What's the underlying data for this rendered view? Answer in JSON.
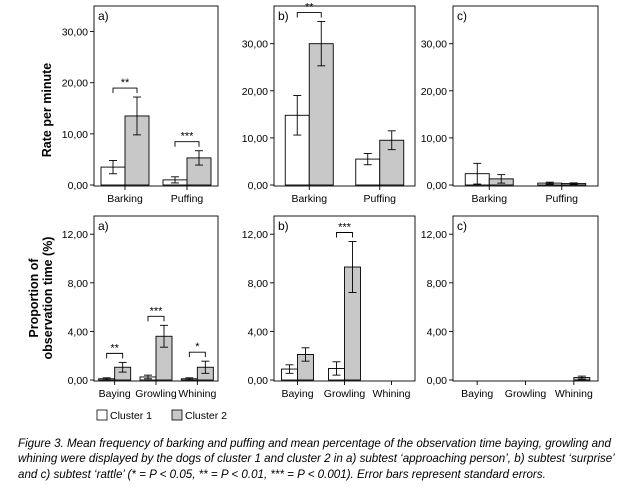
{
  "figure": {
    "row_labels": {
      "top": "Rate per minute",
      "bottom_line1": "Proportion of",
      "bottom_line2": "observation time (%)"
    },
    "legend": [
      {
        "name": "Cluster 1",
        "color": "#ffffff"
      },
      {
        "name": "Cluster 2",
        "color": "#c8c8c8"
      }
    ],
    "caption": "Figure 3. Mean frequency of barking and puffing and mean percentage of the observation time baying, growling and whining were displayed by the dogs of cluster 1 and cluster 2 in a) subtest ‘approaching person’, b) subtest ‘surprise’ and c) subtest ‘rattle’ (* = P < 0.05, ** = P < 0.01, *** = P < 0.001). Error bars represent standard errors."
  },
  "chart_data": [
    {
      "type": "bar",
      "panel": "a)",
      "row": "top",
      "categories": [
        "Barking",
        "Puffing"
      ],
      "ylim": [
        0,
        35
      ],
      "yticks": [
        "0,00",
        "10,00",
        "20,00",
        "30,00"
      ],
      "ytick_values": [
        0,
        10,
        20,
        30
      ],
      "ylabel": "Rate per minute",
      "series": [
        {
          "name": "Cluster 1",
          "values": [
            3.5,
            1.0
          ],
          "err": [
            1.3,
            0.6
          ]
        },
        {
          "name": "Cluster 2",
          "values": [
            13.5,
            5.3
          ],
          "err": [
            3.7,
            1.4
          ]
        }
      ],
      "significance": [
        "**",
        "***"
      ]
    },
    {
      "type": "bar",
      "panel": "b)",
      "row": "top",
      "categories": [
        "Barking",
        "Puffing"
      ],
      "ylim": [
        0,
        38
      ],
      "yticks": [
        "0,00",
        "10,00",
        "20,00",
        "30,00"
      ],
      "ytick_values": [
        0,
        10,
        20,
        30
      ],
      "series": [
        {
          "name": "Cluster 1",
          "values": [
            14.8,
            5.5
          ],
          "err": [
            4.2,
            1.2
          ]
        },
        {
          "name": "Cluster 2",
          "values": [
            30.0,
            9.5
          ],
          "err": [
            4.7,
            2.0
          ]
        }
      ],
      "significance": [
        "**",
        ""
      ]
    },
    {
      "type": "bar",
      "panel": "c)",
      "row": "top",
      "categories": [
        "Barking",
        "Puffing"
      ],
      "ylim": [
        0,
        38
      ],
      "yticks": [
        "0,00",
        "10,00",
        "20,00",
        "30,00"
      ],
      "ytick_values": [
        0,
        10,
        20,
        30
      ],
      "series": [
        {
          "name": "Cluster 1",
          "values": [
            2.4,
            0.4
          ],
          "err": [
            2.2,
            0.2
          ]
        },
        {
          "name": "Cluster 2",
          "values": [
            1.3,
            0.3
          ],
          "err": [
            0.9,
            0.15
          ]
        }
      ],
      "significance": [
        "",
        ""
      ]
    },
    {
      "type": "bar",
      "panel": "a)",
      "row": "bottom",
      "categories": [
        "Baying",
        "Growling",
        "Whining"
      ],
      "ylim": [
        0,
        13.5
      ],
      "yticks": [
        "0,00",
        "4,00",
        "8,00",
        "12,00"
      ],
      "ytick_values": [
        0,
        4,
        8,
        12
      ],
      "ylabel": "Proportion of observation time (%)",
      "series": [
        {
          "name": "Cluster 1",
          "values": [
            0.1,
            0.25,
            0.1
          ],
          "err": [
            0.08,
            0.15,
            0.08
          ]
        },
        {
          "name": "Cluster 2",
          "values": [
            1.05,
            3.6,
            1.05
          ],
          "err": [
            0.4,
            0.9,
            0.5
          ]
        }
      ],
      "significance": [
        "**",
        "***",
        "*"
      ]
    },
    {
      "type": "bar",
      "panel": "b)",
      "row": "bottom",
      "categories": [
        "Baying",
        "Growling",
        "Whining"
      ],
      "ylim": [
        0,
        13.5
      ],
      "yticks": [
        "0,00",
        "4,00",
        "8,00",
        "12,00"
      ],
      "ytick_values": [
        0,
        4,
        8,
        12
      ],
      "series": [
        {
          "name": "Cluster 1",
          "values": [
            0.9,
            0.95,
            0.0
          ],
          "err": [
            0.35,
            0.55,
            0.0
          ]
        },
        {
          "name": "Cluster 2",
          "values": [
            2.1,
            9.3,
            0.0
          ],
          "err": [
            0.55,
            2.1,
            0.0
          ]
        }
      ],
      "significance": [
        "",
        "***",
        ""
      ]
    },
    {
      "type": "bar",
      "panel": "c)",
      "row": "bottom",
      "categories": [
        "Baying",
        "Growling",
        "Whining"
      ],
      "ylim": [
        0,
        13.5
      ],
      "yticks": [
        "0,00",
        "4,00",
        "8,00",
        "12,00"
      ],
      "ytick_values": [
        0,
        4,
        8,
        12
      ],
      "series": [
        {
          "name": "Cluster 1",
          "values": [
            0.0,
            0.0,
            0.0
          ],
          "err": [
            0.0,
            0.0,
            0.0
          ]
        },
        {
          "name": "Cluster 2",
          "values": [
            0.0,
            0.0,
            0.2
          ],
          "err": [
            0.0,
            0.0,
            0.12
          ]
        }
      ],
      "significance": [
        "",
        "",
        ""
      ]
    }
  ]
}
